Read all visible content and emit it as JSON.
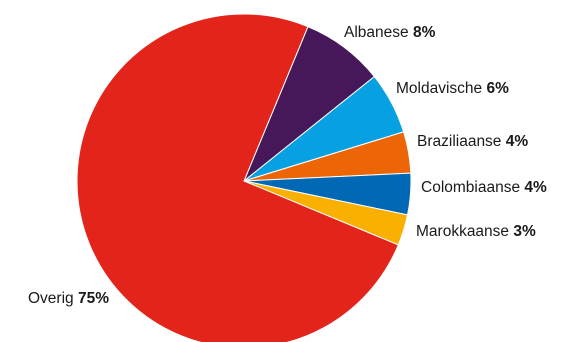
{
  "chart_data": {
    "type": "pie",
    "title": "",
    "legend": "none",
    "slices": [
      {
        "label": "Albanese",
        "value": 8,
        "value_label": "8%",
        "color": "#46185a"
      },
      {
        "label": "Moldavische",
        "value": 6,
        "value_label": "6%",
        "color": "#06a0e3"
      },
      {
        "label": "Braziliaanse",
        "value": 4,
        "value_label": "4%",
        "color": "#ec6608"
      },
      {
        "label": "Colombiaanse",
        "value": 4,
        "value_label": "4%",
        "color": "#0068b4"
      },
      {
        "label": "Marokkaanse",
        "value": 3,
        "value_label": "3%",
        "color": "#f9b000"
      },
      {
        "label": "Overig",
        "value": 75,
        "value_label": "75%",
        "color": "#e3241b"
      }
    ]
  }
}
